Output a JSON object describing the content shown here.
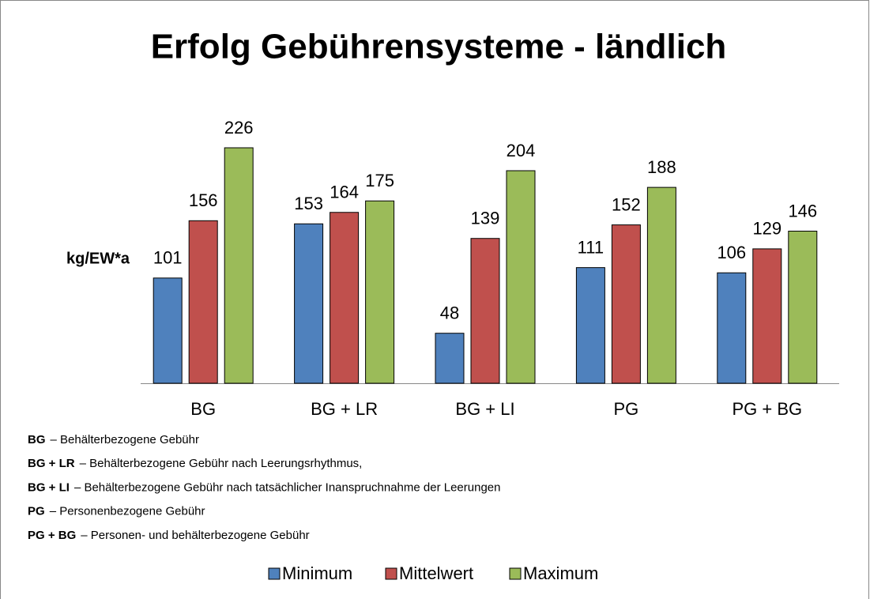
{
  "chart_data": {
    "type": "bar",
    "title": "Erfolg Gebührensysteme - ländlich",
    "y_label": "kg/EW*a",
    "categories": [
      "BG",
      "BG + LR",
      "BG + LI",
      "PG",
      "PG + BG"
    ],
    "series": [
      {
        "name": "Minimum",
        "color": "#4f81bd",
        "values": [
          101,
          153,
          48,
          111,
          106
        ]
      },
      {
        "name": "Mittelwert",
        "color": "#c0504d",
        "values": [
          156,
          164,
          139,
          152,
          129
        ]
      },
      {
        "name": "Maximum",
        "color": "#9bbb59",
        "values": [
          226,
          175,
          204,
          188,
          146
        ]
      }
    ],
    "notes": [
      {
        "abbr": "BG",
        "text": "– Behälterbezogene Gebühr"
      },
      {
        "abbr": "BG + LR",
        "text": "– Behälterbezogene Gebühr nach Leerungsrhythmus,"
      },
      {
        "abbr": "BG + LI",
        "text": "– Behälterbezogene Gebühr nach tatsächlicher Inanspruchnahme der Leerungen"
      },
      {
        "abbr": "PG",
        "text": "– Personenbezogene Gebühr"
      },
      {
        "abbr": "PG + BG",
        "text": "– Personen- und behälterbezogene Gebühr"
      }
    ]
  }
}
